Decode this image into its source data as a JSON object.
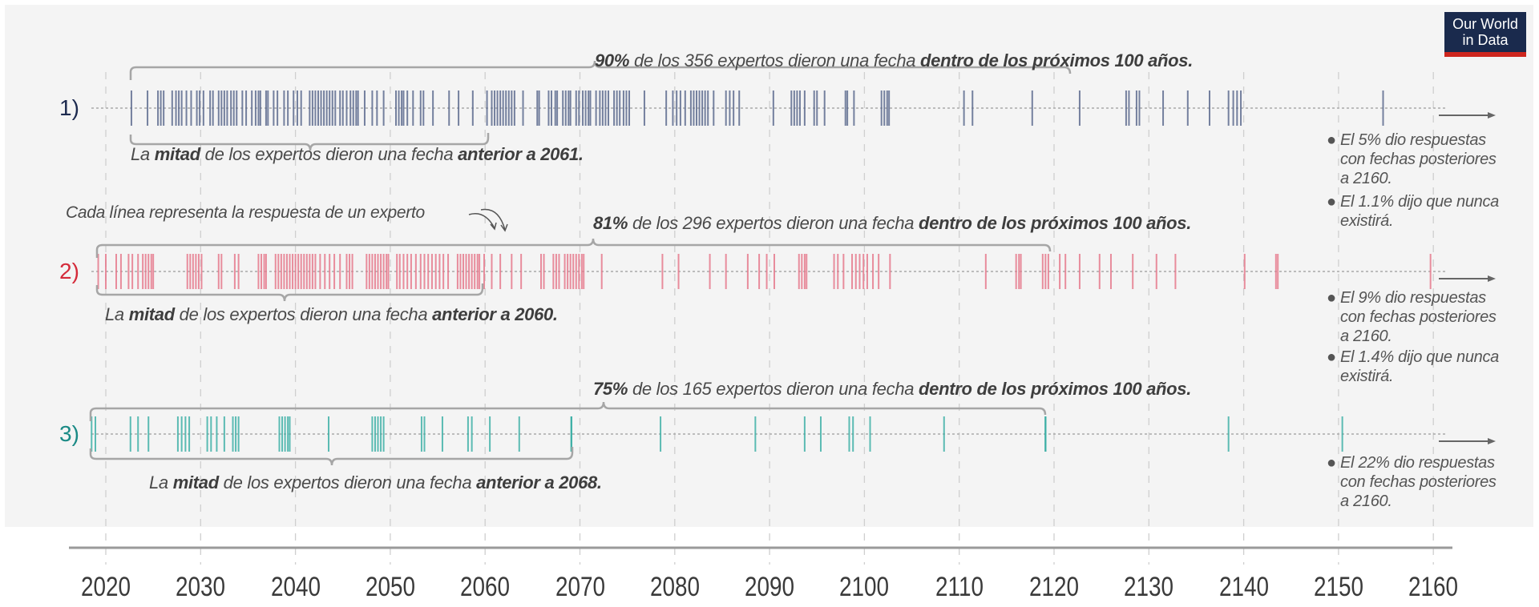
{
  "logo": {
    "line1": "Our World",
    "line2": "in Data"
  },
  "rows": [
    {
      "label": "1)",
      "label_color": "#1d2a4f",
      "top": {
        "pct": "90%",
        "mid": " de los 356 expertos dieron una fecha ",
        "bold": "dentro de los próximos 100 años."
      },
      "bottom": {
        "pre": "La ",
        "b1": "mitad",
        "mid": " de los expertos dieron una fecha ",
        "b2": "anterior a 2061."
      },
      "notes": [
        {
          "lines": [
            "El 5% dio respuestas",
            "con fechas posteriores",
            "a 2160."
          ]
        },
        {
          "lines": [
            "El 1.1% dijo que nunca",
            "existirá."
          ]
        }
      ]
    },
    {
      "label": "2)",
      "label_color": "#d42b3a",
      "top": {
        "pct": "81%",
        "mid": " de los 296 expertos dieron una fecha ",
        "bold": "dentro de los próximos 100 años."
      },
      "bottom": {
        "pre": "La ",
        "b1": "mitad",
        "mid": " de los expertos dieron una fecha ",
        "b2": "anterior a 2060."
      },
      "notes": [
        {
          "lines": [
            "El 9% dio respuestas",
            "con fechas posteriores",
            "a 2160."
          ]
        },
        {
          "lines": [
            "El 1.4% dijo que nunca",
            "existirá."
          ]
        }
      ]
    },
    {
      "label": "3)",
      "label_color": "#1a8a85",
      "top": {
        "pct": "75%",
        "mid": " de los 165 expertos dieron una fecha ",
        "bold": "dentro de los próximos 100 años."
      },
      "bottom": {
        "pre": "La ",
        "b1": "mitad",
        "mid": " de los expertos dieron una fecha ",
        "b2": "anterior a 2068."
      },
      "notes": [
        {
          "lines": [
            "El 22% dio respuestas",
            "con fechas posteriores",
            "a 2160."
          ]
        }
      ]
    }
  ],
  "callout": "Cada línea representa la respuesta de un experto",
  "chart_data": {
    "type": "scatter",
    "xlim": [
      2018,
      2162
    ],
    "x_ticks": [
      2020,
      2030,
      2040,
      2050,
      2060,
      2070,
      2080,
      2090,
      2100,
      2110,
      2120,
      2130,
      2140,
      2150,
      2160
    ],
    "grid": true,
    "series": [
      {
        "color": "#5d6b8e",
        "values": [
          2022.7,
          2024.4,
          2025.5,
          2025.8,
          2026.1,
          2027.0,
          2027.4,
          2027.7,
          2028.0,
          2028.5,
          2029.0,
          2029.6,
          2029.9,
          2030.3,
          2031.0,
          2031.3,
          2031.9,
          2032.2,
          2032.5,
          2032.8,
          2033.2,
          2033.5,
          2033.8,
          2034.4,
          2034.8,
          2035.4,
          2035.8,
          2036.1,
          2036.3,
          2036.9,
          2037.1,
          2037.7,
          2038.1,
          2038.8,
          2039.2,
          2039.8,
          2040.2,
          2040.6,
          2041.5,
          2041.8,
          2042.1,
          2042.4,
          2042.7,
          2043.0,
          2043.3,
          2043.6,
          2043.9,
          2044.2,
          2044.7,
          2045.0,
          2045.4,
          2045.8,
          2046.1,
          2046.4,
          2046.6,
          2047.3,
          2048.1,
          2048.6,
          2049.3,
          2050.6,
          2050.9,
          2051.2,
          2051.4,
          2051.8,
          2052.4,
          2053.2,
          2053.5,
          2054.5,
          2056.2,
          2057.2,
          2058.7,
          2060.2,
          2060.7,
          2061.0,
          2061.3,
          2061.6,
          2061.9,
          2062.2,
          2062.5,
          2062.8,
          2063.1,
          2064.0,
          2065.5,
          2065.7,
          2066.7,
          2067.0,
          2067.4,
          2067.6,
          2068.2,
          2068.5,
          2068.8,
          2069.0,
          2069.6,
          2069.9,
          2070.3,
          2070.6,
          2070.9,
          2071.1,
          2071.7,
          2072.1,
          2072.4,
          2072.7,
          2073.0,
          2073.6,
          2073.9,
          2074.2,
          2074.6,
          2074.9,
          2075.2,
          2076.8,
          2079.1,
          2079.8,
          2080.2,
          2080.6,
          2081.1,
          2081.7,
          2082.0,
          2082.3,
          2082.6,
          2082.9,
          2083.2,
          2083.5,
          2084.1,
          2085.4,
          2085.8,
          2086.2,
          2086.8,
          2090.4,
          2092.3,
          2092.6,
          2092.9,
          2093.2,
          2093.7,
          2094.7,
          2095.0,
          2095.8,
          2098.0,
          2098.2,
          2098.9,
          2101.8,
          2102.1,
          2102.4,
          2102.6,
          2110.5,
          2111.4,
          2117.7,
          2122.7,
          2127.6,
          2127.9,
          2128.7,
          2129.0,
          2131.5,
          2134.1,
          2136.4,
          2138.4,
          2138.9,
          2139.3,
          2139.7,
          2154.7
        ]
      },
      {
        "color": "#e5798c",
        "values": [
          2019.2,
          2020.0,
          2021.1,
          2021.6,
          2022.4,
          2022.8,
          2023.4,
          2023.9,
          2024.2,
          2024.5,
          2024.8,
          2025.0,
          2028.6,
          2028.9,
          2029.2,
          2029.5,
          2029.8,
          2030.1,
          2031.9,
          2032.2,
          2033.6,
          2034.0,
          2036.1,
          2036.4,
          2036.7,
          2036.9,
          2037.9,
          2038.2,
          2038.5,
          2038.8,
          2039.1,
          2039.4,
          2039.7,
          2040.0,
          2040.3,
          2040.6,
          2040.9,
          2041.2,
          2041.5,
          2041.8,
          2042.1,
          2042.6,
          2043.1,
          2043.6,
          2044.1,
          2044.7,
          2045.4,
          2045.7,
          2046.0,
          2047.5,
          2047.8,
          2048.1,
          2048.4,
          2048.7,
          2049.0,
          2049.3,
          2049.6,
          2049.8,
          2050.7,
          2051.0,
          2051.4,
          2051.8,
          2052.2,
          2052.7,
          2053.2,
          2053.6,
          2054.0,
          2054.4,
          2054.8,
          2055.2,
          2055.6,
          2056.1,
          2057.1,
          2057.4,
          2057.7,
          2058.0,
          2058.3,
          2058.6,
          2058.9,
          2059.2,
          2059.4,
          2059.9,
          2060.7,
          2061.6,
          2062.8,
          2063.8,
          2065.9,
          2066.2,
          2067.2,
          2067.5,
          2067.8,
          2068.4,
          2068.7,
          2069.0,
          2069.3,
          2069.6,
          2069.9,
          2070.2,
          2070.4,
          2072.3,
          2078.7,
          2080.4,
          2083.7,
          2085.4,
          2087.7,
          2088.9,
          2089.7,
          2090.5,
          2093.1,
          2093.4,
          2093.7,
          2093.9,
          2096.8,
          2097.2,
          2097.8,
          2098.7,
          2099.1,
          2099.5,
          2099.9,
          2100.3,
          2100.9,
          2101.5,
          2102.7,
          2112.8,
          2116.0,
          2116.3,
          2116.5,
          2118.8,
          2119.1,
          2119.4,
          2120.6,
          2121.2,
          2122.7,
          2124.8,
          2126.0,
          2128.3,
          2130.8,
          2132.8,
          2140.1,
          2143.4,
          2143.6,
          2159.7
        ]
      },
      {
        "color": "#3fb0a7",
        "values": [
          2018.5,
          2018.9,
          2022.6,
          2023.4,
          2024.5,
          2027.6,
          2028.0,
          2028.4,
          2028.8,
          2030.7,
          2031.1,
          2031.7,
          2032.5,
          2033.4,
          2033.7,
          2034.0,
          2038.3,
          2038.6,
          2038.9,
          2039.2,
          2039.4,
          2043.5,
          2048.1,
          2048.4,
          2048.7,
          2049.0,
          2049.3,
          2053.3,
          2053.6,
          2055.5,
          2058.2,
          2058.6,
          2060.5,
          2063.6,
          2069.1,
          2069.1,
          2069.1,
          2069.1,
          2078.5,
          2088.5,
          2093.7,
          2095.4,
          2098.4,
          2098.8,
          2100.6,
          2108.4,
          2119.1,
          2119.1,
          2119.1,
          2119.1,
          2138.4,
          2150.4
        ]
      }
    ]
  }
}
